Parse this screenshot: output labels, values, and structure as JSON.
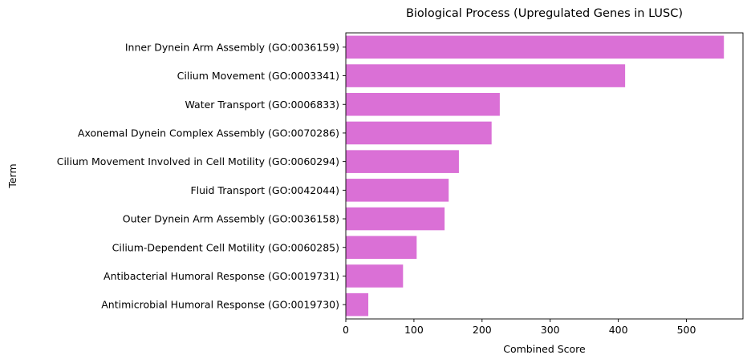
{
  "chart_data": {
    "type": "bar",
    "orientation": "horizontal",
    "title": "Biological Process (Upregulated Genes in LUSC)",
    "xlabel": "Combined Score",
    "ylabel": "Term",
    "bar_color": "#da70d6",
    "xlim": [
      0,
      583
    ],
    "xticks": [
      0,
      100,
      200,
      300,
      400,
      500
    ],
    "categories": [
      "Inner Dynein Arm Assembly (GO:0036159)",
      "Cilium Movement (GO:0003341)",
      "Water Transport (GO:0006833)",
      "Axonemal Dynein Complex Assembly (GO:0070286)",
      "Cilium Movement Involved in Cell Motility (GO:0060294)",
      "Fluid Transport (GO:0042044)",
      "Outer Dynein Arm Assembly (GO:0036158)",
      "Cilium-Dependent Cell Motility (GO:0060285)",
      "Antibacterial Humoral Response (GO:0019731)",
      "Antimicrobial Humoral Response (GO:0019730)"
    ],
    "values": [
      555,
      410,
      226,
      214,
      166,
      151,
      145,
      104,
      84,
      33
    ]
  }
}
